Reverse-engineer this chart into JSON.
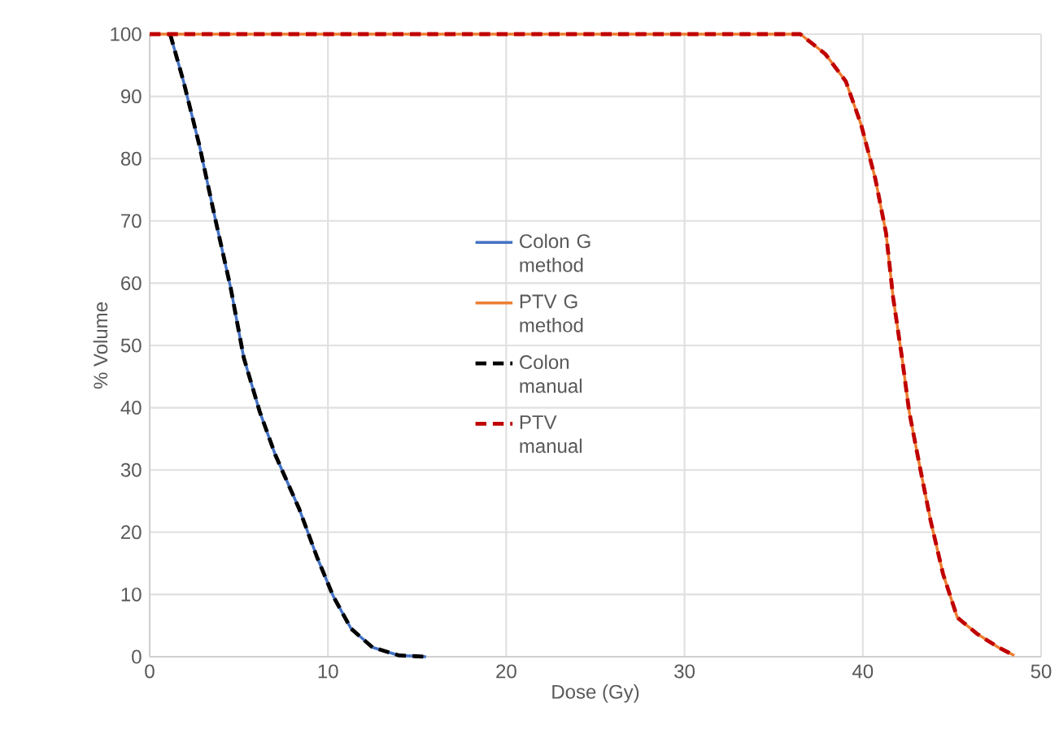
{
  "chart_data": {
    "type": "line",
    "xlabel": "Dose (Gy)",
    "ylabel": "% Volume",
    "xlim": [
      0,
      50
    ],
    "xticks": [
      0,
      10,
      20,
      30,
      40,
      50
    ],
    "ylim": [
      0,
      100
    ],
    "yticks": [
      0,
      10,
      20,
      30,
      40,
      50,
      60,
      70,
      80,
      90,
      100
    ],
    "grid": true,
    "legend": "center",
    "series": [
      {
        "name": "Colon G method",
        "color": "#4472c4",
        "line_style": "solid",
        "x": [
          1.15,
          1.9,
          2.8,
          3.65,
          4.54,
          5.28,
          6.17,
          7.05,
          8.38,
          9.4,
          10.3,
          11.3,
          12.5,
          14.0,
          15.5
        ],
        "values": [
          100,
          92.4,
          82,
          70.7,
          59.3,
          48,
          39.4,
          32.4,
          23.8,
          15.9,
          9.7,
          4.5,
          1.5,
          0.2,
          0
        ]
      },
      {
        "name": "PTV G method",
        "color": "#ed7d31",
        "line_style": "solid",
        "x": [
          0,
          36.5,
          37.9,
          39.05,
          39.9,
          40.7,
          41.3,
          41.7,
          42.2,
          42.6,
          43.2,
          43.8,
          44.5,
          45.3,
          46.4,
          47.6,
          48.5
        ],
        "values": [
          100,
          100,
          96.8,
          92.4,
          85.5,
          76.8,
          68.1,
          57.7,
          48,
          39.4,
          30.5,
          21.9,
          13.3,
          6.3,
          3.7,
          1.5,
          0.2
        ]
      },
      {
        "name": "Colon manual",
        "color": "#000000",
        "line_style": "dashed",
        "x": [
          1.15,
          1.9,
          2.8,
          3.65,
          4.54,
          5.28,
          6.17,
          7.05,
          8.38,
          9.4,
          10.3,
          11.3,
          12.5,
          14.0,
          15.5
        ],
        "values": [
          100,
          92.4,
          82,
          70.7,
          59.3,
          48,
          39.4,
          32.4,
          23.8,
          15.9,
          9.7,
          4.5,
          1.5,
          0.2,
          0
        ]
      },
      {
        "name": "PTV manual",
        "color": "#c00000",
        "line_style": "dashed",
        "x": [
          0,
          36.5,
          37.9,
          39.05,
          39.9,
          40.7,
          41.3,
          41.7,
          42.2,
          42.6,
          43.2,
          43.8,
          44.5,
          45.3,
          46.4,
          47.6,
          48.5
        ],
        "values": [
          100,
          100,
          96.8,
          92.4,
          85.5,
          76.8,
          68.1,
          57.7,
          48,
          39.4,
          30.5,
          21.9,
          13.3,
          6.3,
          3.7,
          1.5,
          0.2
        ]
      }
    ]
  }
}
